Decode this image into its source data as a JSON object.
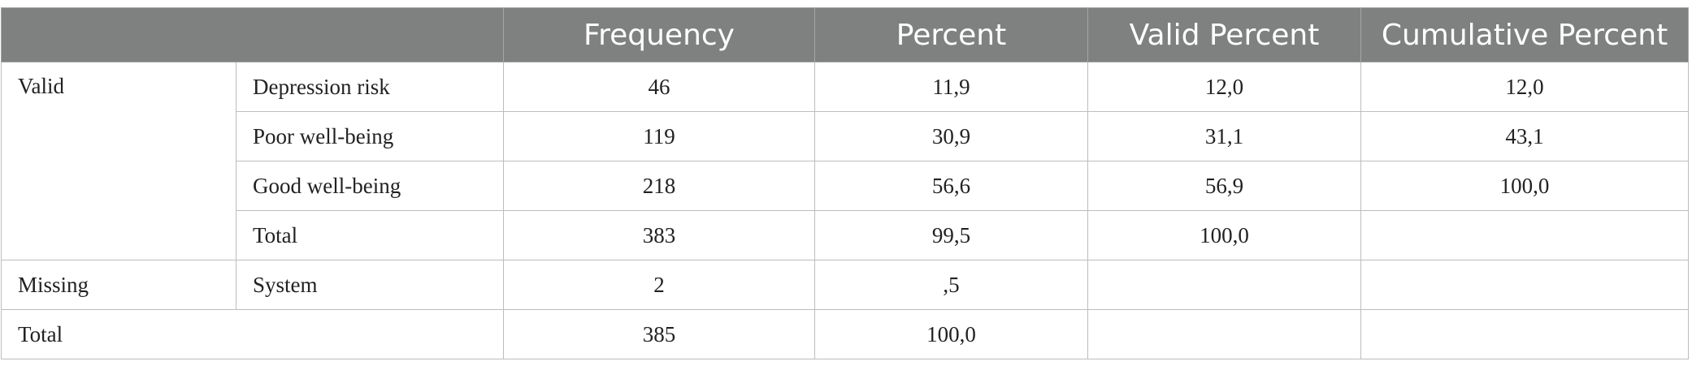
{
  "header": {
    "corner": "",
    "frequency": "Frequency",
    "percent": "Percent",
    "valid_percent": "Valid Percent",
    "cumulative_percent": "Cumulative Percent"
  },
  "groups": {
    "valid": "Valid",
    "missing": "Missing",
    "total": "Total"
  },
  "rows": [
    {
      "label": "Depression risk",
      "frequency": "46",
      "percent": "11,9",
      "valid_percent": "12,0",
      "cumulative_percent": "12,0"
    },
    {
      "label": "Poor well-being",
      "frequency": "119",
      "percent": "30,9",
      "valid_percent": "31,1",
      "cumulative_percent": "43,1"
    },
    {
      "label": "Good well-being",
      "frequency": "218",
      "percent": "56,6",
      "valid_percent": "56,9",
      "cumulative_percent": "100,0"
    },
    {
      "label": "Total",
      "frequency": "383",
      "percent": "99,5",
      "valid_percent": "100,0",
      "cumulative_percent": ""
    },
    {
      "label": "System",
      "frequency": "2",
      "percent": ",5",
      "valid_percent": "",
      "cumulative_percent": ""
    },
    {
      "label": "",
      "frequency": "385",
      "percent": "100,0",
      "valid_percent": "",
      "cumulative_percent": ""
    }
  ],
  "colors": {
    "header_bg": "#7f8180",
    "header_text": "#ffffff",
    "border": "#bdbdbd",
    "body_text": "#222222"
  }
}
